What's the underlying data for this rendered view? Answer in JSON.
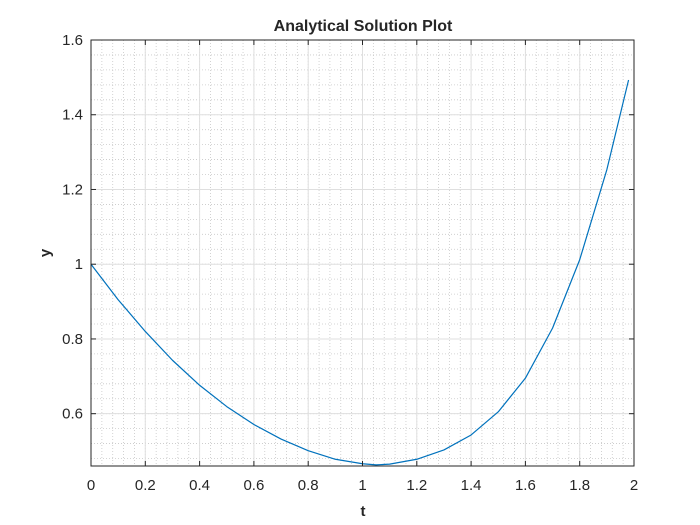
{
  "chart_data": {
    "type": "line",
    "title": "Analytical Solution Plot",
    "xlabel": "t",
    "ylabel": "y",
    "xlim": [
      0,
      2
    ],
    "ylim": [
      0.46,
      1.6
    ],
    "x_ticks": [
      0,
      0.2,
      0.4,
      0.6,
      0.8,
      1,
      1.2,
      1.4,
      1.6,
      1.8,
      2
    ],
    "x_tick_labels": [
      "0",
      "0.2",
      "0.4",
      "0.6",
      "0.8",
      "1",
      "1.2",
      "1.4",
      "1.6",
      "1.8",
      "2"
    ],
    "y_ticks": [
      0.6,
      0.8,
      1.0,
      1.2,
      1.4,
      1.6
    ],
    "y_tick_labels": [
      "0.6",
      "0.8",
      "1",
      "1.2",
      "1.4",
      "1.6"
    ],
    "grid": true,
    "minor_grid": true,
    "colors": {
      "line": "#0072bd",
      "axes": "#262626",
      "grid": "#dfdfdf",
      "minor_grid": "#c8c8c8"
    },
    "series": [
      {
        "x": [
          0,
          0.1,
          0.2,
          0.3,
          0.4,
          0.5,
          0.6,
          0.7,
          0.8,
          0.9,
          1.0,
          1.05,
          1.1,
          1.2,
          1.3,
          1.4,
          1.5,
          1.6,
          1.7,
          1.8,
          1.9,
          1.98
        ],
        "y": [
          1.0,
          0.905,
          0.82,
          0.743,
          0.676,
          0.619,
          0.571,
          0.532,
          0.501,
          0.478,
          0.466,
          0.463,
          0.465,
          0.478,
          0.503,
          0.543,
          0.605,
          0.695,
          0.829,
          1.012,
          1.253,
          1.493
        ]
      }
    ]
  }
}
